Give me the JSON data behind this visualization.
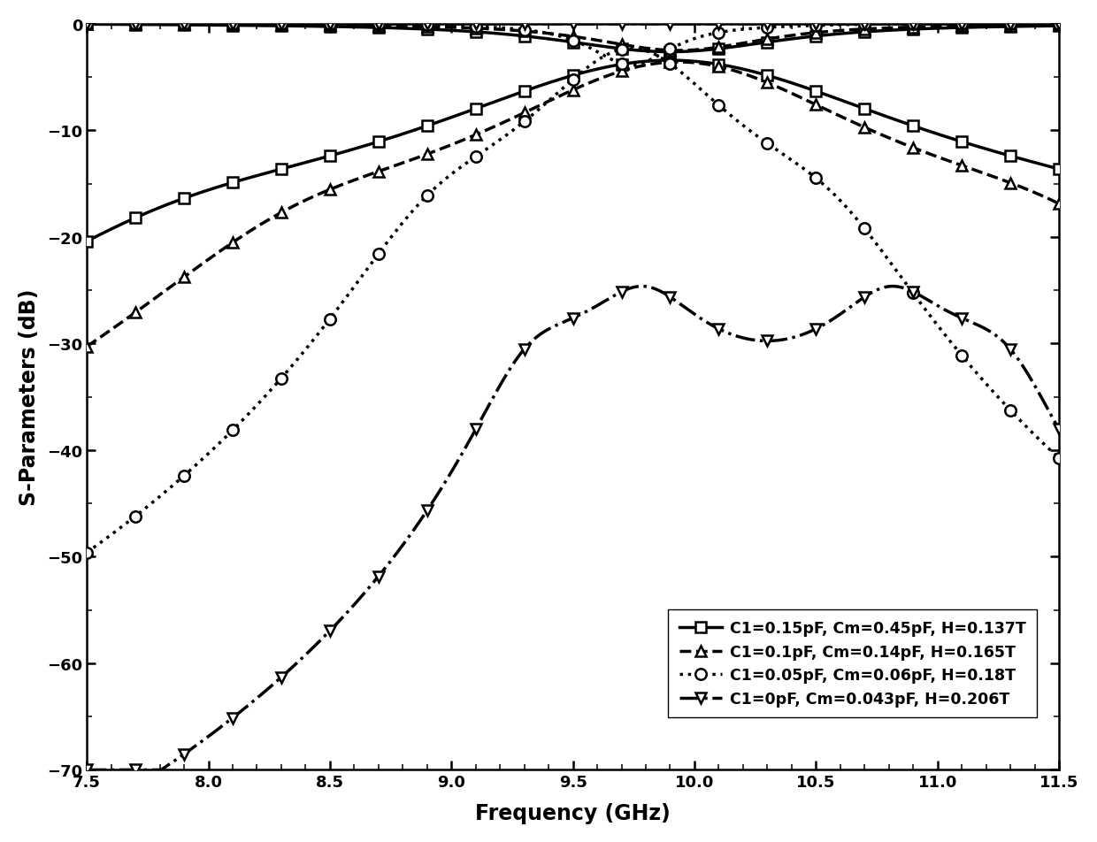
{
  "xlabel": "Frequency (GHz)",
  "ylabel": "S-Parameters (dB)",
  "xlim": [
    7.5,
    11.5
  ],
  "ylim": [
    -70,
    0
  ],
  "xticks": [
    7.5,
    8.0,
    8.5,
    9.0,
    9.5,
    10.0,
    10.5,
    11.0,
    11.5
  ],
  "yticks": [
    0,
    -10,
    -20,
    -30,
    -40,
    -50,
    -60,
    -70
  ],
  "legend_entries": [
    "C1=0.15pF, Cm=0.45pF, H=0.137T",
    "C1=0.1pF, Cm=0.14pF, H=0.165T",
    "C1=0.05pF, Cm=0.06pF, H=0.18T",
    "C1=0pF, Cm=0.043pF, H=0.206T"
  ],
  "background_color": "#ffffff",
  "markers": [
    "s",
    "^",
    "o",
    "v"
  ],
  "linestyles": [
    "-",
    "--",
    ":",
    "-."
  ],
  "linewidth": 2.5,
  "markersize": 9,
  "marker_interval": 0.2
}
